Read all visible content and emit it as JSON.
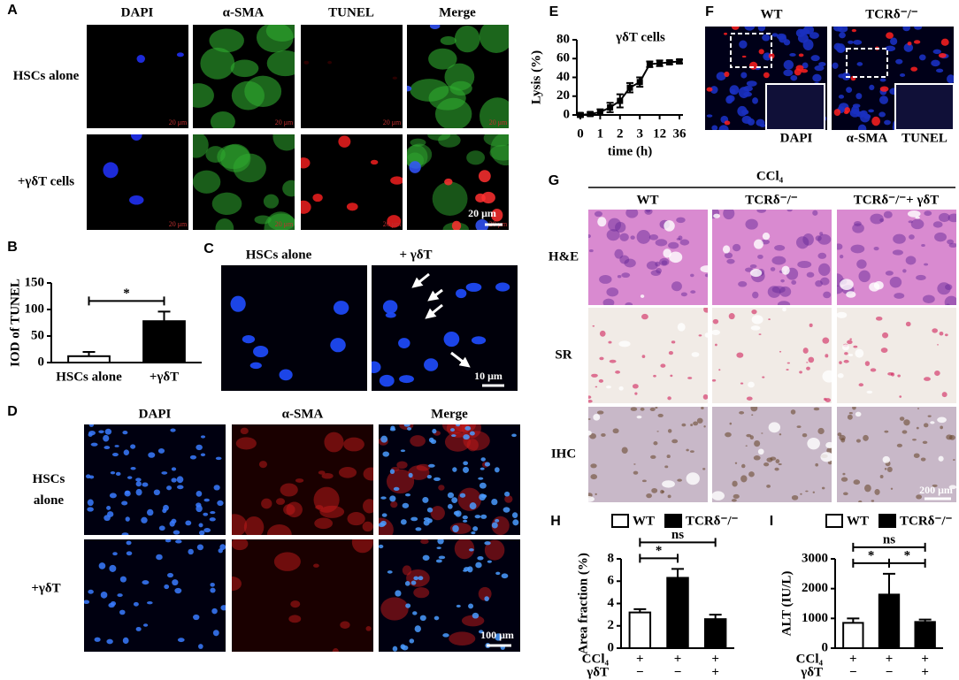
{
  "figure": {
    "A": {
      "label": "A",
      "columns": [
        "DAPI",
        "α-SMA",
        "TUNEL",
        "Merge"
      ],
      "rows": [
        "HSCs alone",
        "+γδT cells"
      ],
      "scale_small": "20 μm",
      "scale": "20 μm"
    },
    "C": {
      "label": "C",
      "columns": [
        "HSCs  alone",
        "+ γδT"
      ],
      "scale": "10 μm"
    },
    "D": {
      "label": "D",
      "columns": [
        {
          "text": "DAPI",
          "color": "#1a2fd0"
        },
        {
          "text": "α-SMA",
          "color": "#e01818"
        },
        {
          "text": "Merge",
          "color": "#000000"
        }
      ],
      "rows": [
        "HSCs alone",
        "+γδT"
      ],
      "scale": "100 μm"
    },
    "F": {
      "label": "F",
      "columns": [
        "WT",
        "TCRδ⁻/⁻"
      ],
      "legend": [
        {
          "text": "DAPI",
          "color": "#1a2fd0"
        },
        {
          "text": "α-SMA",
          "color": "#e01818"
        },
        {
          "text": "TUNEL",
          "color": "#18b018"
        }
      ]
    },
    "G": {
      "label": "G",
      "treatment": "CCl₄",
      "columns": [
        "WT",
        "TCRδ⁻/⁻",
        "TCRδ⁻/⁻+ γδT"
      ],
      "rows": [
        "H&E",
        "SR",
        "IHC"
      ],
      "scale": "200 μm"
    }
  },
  "chart_data": [
    {
      "type": "bar",
      "panel_label": "B",
      "y_label": "IOD of TUNEL",
      "categories": [
        "HSCs alone",
        "+γδT"
      ],
      "values": [
        12,
        78
      ],
      "errors": [
        8,
        18
      ],
      "colors": [
        "#ffffff",
        "#000000"
      ],
      "ylim": [
        0,
        150
      ],
      "yticks": [
        0,
        50,
        100,
        150
      ],
      "significance": [
        {
          "from": 0,
          "to": 1,
          "label": "*"
        }
      ]
    },
    {
      "type": "line",
      "panel_label": "E",
      "title": "γδT cells",
      "y_label": "Lysis (%)",
      "x_label": "time (h)",
      "categories": [
        "0",
        null,
        "1",
        null,
        "2",
        null,
        "3",
        null,
        "12",
        null,
        "36"
      ],
      "values": [
        0,
        1,
        3,
        8,
        15,
        29,
        35,
        54,
        55,
        56,
        57
      ],
      "errors": [
        2,
        2,
        3,
        5,
        7,
        5,
        5,
        3,
        3,
        2,
        2
      ],
      "color": "#000000",
      "ylim": [
        0,
        80
      ],
      "yticks": [
        0,
        20,
        40,
        60,
        80
      ]
    },
    {
      "type": "bar",
      "panel_label": "H",
      "y_label": "Area fraction (%)",
      "legend": [
        {
          "name": "WT",
          "color": "#ffffff"
        },
        {
          "name": "TCRδ⁻/⁻",
          "color": "#000000"
        }
      ],
      "conditions": [
        {
          "label": "CCl₄",
          "marks": [
            "+",
            "+",
            "+"
          ]
        },
        {
          "label": "γδT",
          "marks": [
            "−",
            "−",
            "+"
          ]
        }
      ],
      "values": [
        3.2,
        6.3,
        2.6
      ],
      "errors": [
        0.3,
        0.8,
        0.4
      ],
      "colors": [
        "#ffffff",
        "#000000",
        "#000000"
      ],
      "ylim": [
        0,
        8
      ],
      "yticks": [
        0,
        2,
        4,
        6,
        8
      ],
      "significance": [
        {
          "from": 0,
          "to": 1,
          "label": "*"
        },
        {
          "from": 0,
          "to": 2,
          "label": "ns"
        }
      ]
    },
    {
      "type": "bar",
      "panel_label": "I",
      "y_label": "ALT (IU/L)",
      "legend": [
        {
          "name": "WT",
          "color": "#ffffff"
        },
        {
          "name": "TCRδ⁻/⁻",
          "color": "#000000"
        }
      ],
      "conditions": [
        {
          "label": "CCl₄",
          "marks": [
            "+",
            "+",
            "+"
          ]
        },
        {
          "label": "γδT",
          "marks": [
            "−",
            "−",
            "+"
          ]
        }
      ],
      "values": [
        850,
        1800,
        880
      ],
      "errors": [
        150,
        700,
        80
      ],
      "colors": [
        "#ffffff",
        "#000000",
        "#000000"
      ],
      "ylim": [
        0,
        3000
      ],
      "yticks": [
        0,
        1000,
        2000,
        3000
      ],
      "significance": [
        {
          "from": 0,
          "to": 1,
          "label": "*"
        },
        {
          "from": 1,
          "to": 2,
          "label": "*"
        },
        {
          "from": 0,
          "to": 2,
          "label": "ns"
        }
      ]
    }
  ]
}
